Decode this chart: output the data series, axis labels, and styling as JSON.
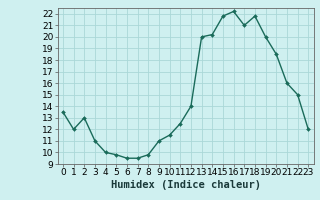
{
  "x": [
    0,
    1,
    2,
    3,
    4,
    5,
    6,
    7,
    8,
    9,
    10,
    11,
    12,
    13,
    14,
    15,
    16,
    17,
    18,
    19,
    20,
    21,
    22,
    23
  ],
  "y": [
    13.5,
    12.0,
    13.0,
    11.0,
    10.0,
    9.8,
    9.5,
    9.5,
    9.8,
    11.0,
    11.5,
    12.5,
    14.0,
    20.0,
    20.2,
    21.8,
    22.2,
    21.0,
    21.8,
    20.0,
    18.5,
    16.0,
    15.0,
    12.0
  ],
  "xlim": [
    -0.5,
    23.5
  ],
  "ylim": [
    9,
    22.5
  ],
  "yticks": [
    9,
    10,
    11,
    12,
    13,
    14,
    15,
    16,
    17,
    18,
    19,
    20,
    21,
    22
  ],
  "xticks": [
    0,
    1,
    2,
    3,
    4,
    5,
    6,
    7,
    8,
    9,
    10,
    11,
    12,
    13,
    14,
    15,
    16,
    17,
    18,
    19,
    20,
    21,
    22,
    23
  ],
  "xlabel": "Humidex (Indice chaleur)",
  "line_color": "#1a6b5a",
  "marker": "D",
  "marker_size": 2.0,
  "bg_color": "#cff0f0",
  "grid_color": "#aad8d8",
  "xlabel_fontsize": 7.5,
  "tick_fontsize": 6.5,
  "line_width": 1.0
}
